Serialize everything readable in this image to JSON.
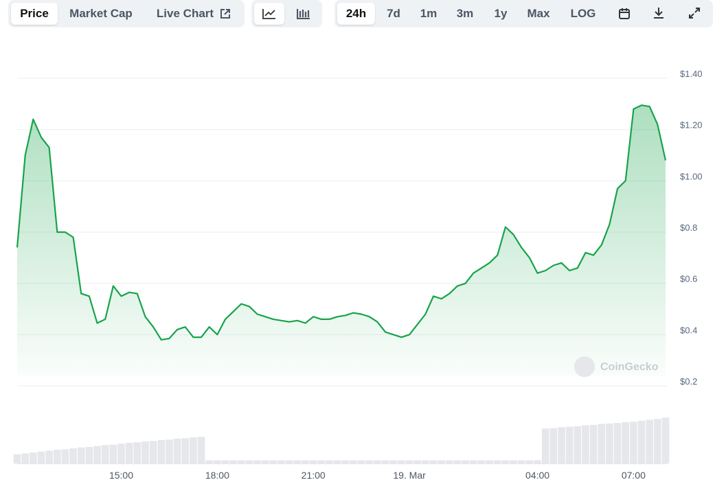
{
  "toolbar": {
    "tabs": [
      "Price",
      "Market Cap",
      "Live Chart"
    ],
    "ranges": [
      "24h",
      "7d",
      "1m",
      "3m",
      "1y",
      "Max",
      "LOG"
    ]
  },
  "watermark": "CoinGecko",
  "chart_data": {
    "type": "line",
    "categories": [
      null,
      null,
      null,
      null,
      null,
      null,
      null,
      null,
      null,
      null,
      null,
      null,
      null,
      "15:00",
      null,
      null,
      null,
      null,
      null,
      null,
      null,
      null,
      null,
      null,
      null,
      "18:00",
      null,
      null,
      null,
      null,
      null,
      null,
      null,
      null,
      null,
      null,
      null,
      "21:00",
      null,
      null,
      null,
      null,
      null,
      null,
      null,
      null,
      null,
      null,
      null,
      "19. Mar",
      null,
      null,
      null,
      null,
      null,
      null,
      null,
      null,
      null,
      null,
      null,
      null,
      null,
      null,
      null,
      "04:00",
      null,
      null,
      null,
      null,
      null,
      null,
      null,
      null,
      null,
      null,
      null,
      "07:00",
      null,
      null,
      null,
      null
    ],
    "series": [
      {
        "name": "Price",
        "color": "#16a34a",
        "values": [
          0.74,
          1.1,
          1.24,
          1.17,
          1.13,
          0.8,
          0.8,
          0.78,
          0.56,
          0.55,
          0.445,
          0.46,
          0.59,
          0.55,
          0.565,
          0.56,
          0.47,
          0.43,
          0.38,
          0.385,
          0.42,
          0.43,
          0.39,
          0.39,
          0.43,
          0.4,
          0.46,
          0.49,
          0.52,
          0.51,
          0.48,
          0.47,
          0.46,
          0.455,
          0.45,
          0.455,
          0.445,
          0.47,
          0.46,
          0.46,
          0.47,
          0.475,
          0.485,
          0.48,
          0.47,
          0.45,
          0.41,
          0.4,
          0.39,
          0.4,
          0.44,
          0.48,
          0.55,
          0.54,
          0.56,
          0.59,
          0.6,
          0.64,
          0.66,
          0.68,
          0.71,
          0.82,
          0.79,
          0.74,
          0.7,
          0.64,
          0.65,
          0.67,
          0.68,
          0.65,
          0.66,
          0.72,
          0.71,
          0.75,
          0.83,
          0.97,
          1.0,
          1.28,
          1.295,
          1.29,
          1.22,
          1.08
        ]
      }
    ],
    "volume": {
      "color": "#e5e7eb",
      "ylim": [
        0,
        100
      ],
      "values": [
        20,
        22,
        24,
        26,
        28,
        30,
        31,
        33,
        35,
        36,
        38,
        40,
        41,
        43,
        45,
        46,
        48,
        49,
        51,
        52,
        54,
        55,
        57,
        58,
        7,
        7,
        7,
        7,
        7,
        7,
        7,
        7,
        7,
        7,
        7,
        7,
        7,
        7,
        7,
        7,
        7,
        7,
        7,
        7,
        7,
        7,
        7,
        7,
        7,
        7,
        7,
        7,
        7,
        7,
        7,
        7,
        7,
        7,
        7,
        7,
        7,
        7,
        7,
        7,
        7,
        7,
        76,
        77,
        79,
        80,
        81,
        83,
        84,
        86,
        87,
        88,
        90,
        91,
        93,
        95,
        97,
        100
      ]
    },
    "ylim": [
      0.2,
      1.4
    ],
    "yticks": [
      {
        "value": 1.4,
        "label": "$1.40"
      },
      {
        "value": 1.2,
        "label": "$1.20"
      },
      {
        "value": 1.0,
        "label": "$1.00"
      },
      {
        "value": 0.8,
        "label": "$0.8"
      },
      {
        "value": 0.6,
        "label": "$0.6"
      },
      {
        "value": 0.4,
        "label": "$0.4"
      },
      {
        "value": 0.2,
        "label": "$0.2"
      }
    ],
    "grid": true
  }
}
